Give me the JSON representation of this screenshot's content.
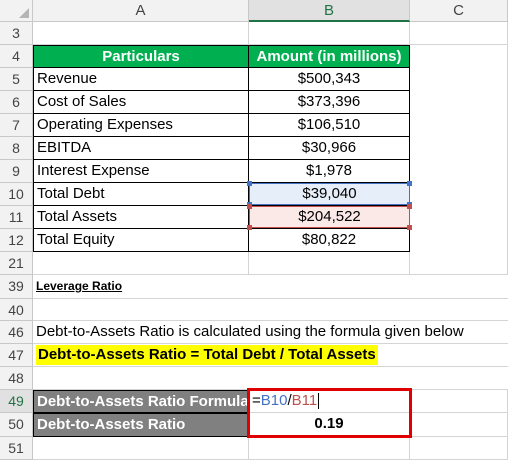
{
  "columns": [
    "A",
    "B",
    "C"
  ],
  "rows": [
    "3",
    "4",
    "5",
    "6",
    "7",
    "8",
    "9",
    "10",
    "11",
    "12",
    "21",
    "39",
    "40",
    "46",
    "47",
    "48",
    "49",
    "50",
    "51"
  ],
  "table": {
    "headers": [
      "Particulars",
      "Amount (in millions)"
    ],
    "rows": [
      {
        "label": "Revenue",
        "value": "$500,343"
      },
      {
        "label": "Cost of Sales",
        "value": "$373,396"
      },
      {
        "label": "Operating Expenses",
        "value": "$106,510"
      },
      {
        "label": "EBITDA",
        "value": "$30,966"
      },
      {
        "label": "Interest Expense",
        "value": "$1,978"
      },
      {
        "label": "Total Debt",
        "value": "$39,040"
      },
      {
        "label": "Total Assets",
        "value": "$204,522"
      },
      {
        "label": "Total Equity",
        "value": "$80,822"
      }
    ]
  },
  "section_title": "Leverage Ratio",
  "description": "Debt-to-Assets Ratio is calculated using the formula given below",
  "formula_text": "Debt-to-Assets Ratio = Total Debt / Total Assets",
  "calc": {
    "formula_label": "Debt-to-Assets Ratio Formula",
    "formula_eq": "=",
    "formula_ref1": "B10",
    "formula_slash": "/",
    "formula_ref2": "B11",
    "result_label": "Debt-to-Assets Ratio",
    "result_value": "0.19"
  },
  "colors": {
    "header_green": "#00b050",
    "calc_gray": "#808080",
    "highlight_yellow": "#ffff00",
    "ref_blue": "#4472c4",
    "ref_red": "#c0504d",
    "box_red": "#e00000"
  }
}
